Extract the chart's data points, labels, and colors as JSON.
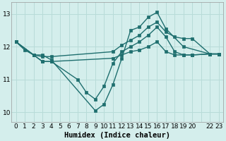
{
  "background_color": "#d4eeec",
  "grid_color": "#b8dbd8",
  "line_color": "#1f6f6f",
  "line_width": 1.0,
  "marker": "s",
  "marker_size": 2.5,
  "xlabel": "Humidex (Indice chaleur)",
  "xlabel_fontsize": 7.5,
  "tick_fontsize": 6.5,
  "ylim": [
    9.7,
    13.35
  ],
  "yticks": [
    10,
    11,
    12,
    13
  ],
  "series": [
    {
      "x": [
        0,
        1,
        2,
        3,
        4,
        9,
        10,
        11,
        12,
        13,
        14,
        15,
        16,
        17,
        19,
        22,
        23
      ],
      "y": [
        12.15,
        11.9,
        11.75,
        11.75,
        11.6,
        10.05,
        10.25,
        10.85,
        11.65,
        12.5,
        12.6,
        12.9,
        13.05,
        12.55,
        12.0,
        11.78,
        11.78
      ]
    },
    {
      "x": [
        0,
        2,
        3,
        4,
        11,
        12,
        13,
        14,
        15,
        16,
        17,
        18,
        19,
        20,
        22,
        23
      ],
      "y": [
        12.15,
        11.75,
        11.7,
        11.7,
        11.85,
        12.05,
        12.2,
        12.35,
        12.6,
        12.75,
        12.45,
        12.3,
        12.25,
        12.25,
        11.78,
        11.78
      ]
    },
    {
      "x": [
        0,
        2,
        3,
        4,
        7,
        8,
        9,
        10,
        11,
        12,
        13,
        14,
        15,
        16,
        17,
        18,
        19,
        20,
        22,
        23
      ],
      "y": [
        12.15,
        11.75,
        11.55,
        11.55,
        11.0,
        10.6,
        10.4,
        10.8,
        11.5,
        11.85,
        12.0,
        12.15,
        12.35,
        12.6,
        12.3,
        11.85,
        11.75,
        11.75,
        11.78,
        11.78
      ]
    },
    {
      "x": [
        0,
        2,
        3,
        4,
        11,
        12,
        13,
        14,
        15,
        16,
        17,
        18,
        19,
        20,
        22,
        23
      ],
      "y": [
        12.15,
        11.75,
        11.55,
        11.55,
        11.65,
        11.75,
        11.85,
        11.9,
        12.0,
        12.15,
        11.85,
        11.75,
        11.75,
        11.75,
        11.78,
        11.78
      ]
    }
  ]
}
